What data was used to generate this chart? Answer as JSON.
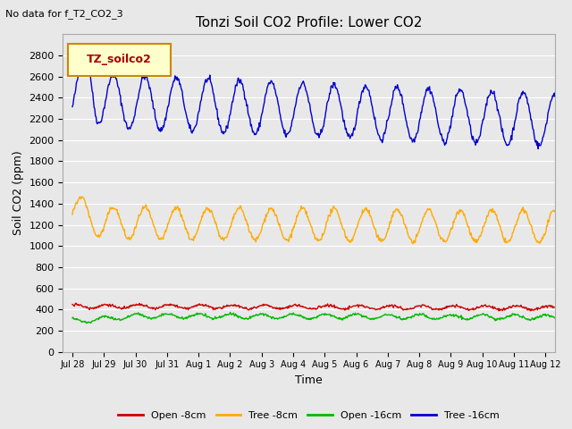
{
  "title": "Tonzi Soil CO2 Profile: Lower CO2",
  "no_data_text": "No data for f_T2_CO2_3",
  "ylabel": "Soil CO2 (ppm)",
  "xlabel": "Time",
  "ylim": [
    0,
    3000
  ],
  "yticks": [
    0,
    200,
    400,
    600,
    800,
    1000,
    1200,
    1400,
    1600,
    1800,
    2000,
    2200,
    2400,
    2600,
    2800
  ],
  "plot_bg_color": "#e8e8e8",
  "grid_color": "white",
  "legend_label": "TZ_soilco2",
  "legend_bg": "#ffffcc",
  "legend_border": "#cc8800",
  "open_8cm_color": "#cc0000",
  "tree_8cm_color": "#ffaa00",
  "open_16cm_color": "#00bb00",
  "tree_16cm_color": "#0000cc",
  "open_8cm_label": "Open -8cm",
  "tree_8cm_label": "Tree -8cm",
  "open_16cm_label": "Open -16cm",
  "tree_16cm_label": "Tree -16cm",
  "n_days": 16,
  "pts_per_day": 48,
  "title_fontsize": 11,
  "label_fontsize": 9,
  "tick_fontsize": 8
}
